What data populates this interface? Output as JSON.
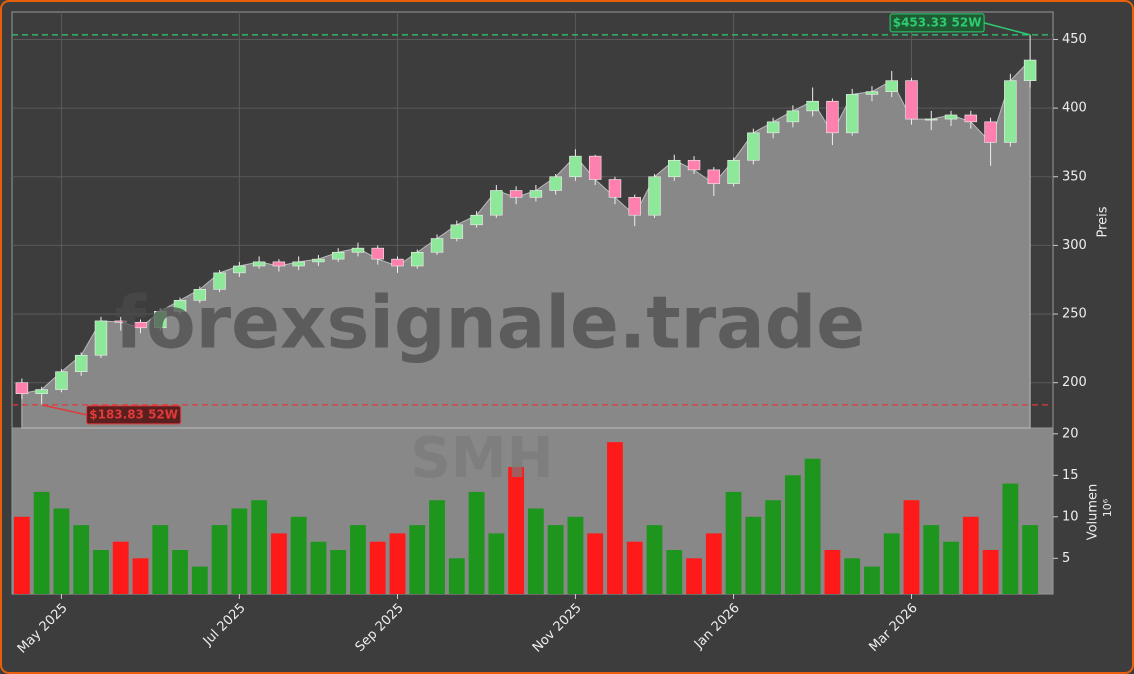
{
  "chart_data": {
    "type": "candlestick",
    "watermark": "forexsignale.trade",
    "ticker": "SMH",
    "y_label": "Preis",
    "y2_label": "Volumen",
    "y2_unit": "10⁶",
    "categories": [
      null,
      null,
      "May 2025",
      null,
      null,
      null,
      null,
      null,
      null,
      null,
      null,
      "Jul 2025",
      null,
      null,
      null,
      null,
      null,
      null,
      null,
      "Sep 2025",
      null,
      null,
      null,
      null,
      null,
      null,
      null,
      null,
      "Nov 2025",
      null,
      null,
      null,
      null,
      null,
      null,
      null,
      "Jan 2026",
      null,
      null,
      null,
      null,
      null,
      null,
      null,
      null,
      "Mar 2026",
      null,
      null,
      null,
      null,
      null,
      null
    ],
    "open": [
      200,
      192,
      195,
      208,
      220,
      245,
      244,
      240,
      252,
      260,
      268,
      280,
      285,
      288,
      285,
      288,
      290,
      295,
      298,
      290,
      285,
      295,
      305,
      315,
      322,
      340,
      335,
      340,
      350,
      365,
      348,
      335,
      322,
      350,
      362,
      355,
      345,
      362,
      382,
      390,
      398,
      405,
      382,
      410,
      412,
      420,
      392,
      392,
      395,
      390,
      375,
      420
    ],
    "high": [
      203,
      197,
      210,
      222,
      248,
      248,
      246,
      254,
      262,
      270,
      282,
      288,
      292,
      290,
      292,
      293,
      298,
      302,
      300,
      292,
      297,
      308,
      318,
      325,
      344,
      343,
      344,
      352,
      370,
      366,
      350,
      337,
      352,
      366,
      365,
      357,
      364,
      385,
      393,
      402,
      415,
      407,
      414,
      416,
      427,
      422,
      398,
      398,
      398,
      393,
      425,
      453.33
    ],
    "low": [
      188,
      183.83,
      193,
      205,
      218,
      238,
      236,
      238,
      250,
      258,
      266,
      277,
      283,
      281,
      282,
      285,
      288,
      292,
      286,
      280,
      283,
      293,
      303,
      313,
      320,
      330,
      332,
      337,
      347,
      344,
      330,
      314,
      320,
      347,
      352,
      336,
      343,
      359,
      378,
      386,
      394,
      373,
      380,
      405,
      408,
      388,
      384,
      387,
      385,
      358,
      372,
      415
    ],
    "close": [
      192,
      195,
      208,
      220,
      245,
      244,
      240,
      252,
      260,
      268,
      280,
      285,
      288,
      285,
      288,
      290,
      295,
      298,
      290,
      285,
      295,
      305,
      315,
      322,
      340,
      335,
      340,
      350,
      365,
      348,
      335,
      322,
      350,
      362,
      355,
      345,
      362,
      382,
      390,
      398,
      405,
      382,
      410,
      412,
      420,
      392,
      392,
      395,
      390,
      375,
      420,
      435
    ],
    "volume": [
      10,
      13,
      11,
      9,
      6,
      7,
      5,
      9,
      6,
      4,
      9,
      11,
      12,
      8,
      10,
      7,
      6,
      9,
      7,
      8,
      9,
      12,
      5,
      13,
      8,
      16,
      11,
      9,
      10,
      8,
      19,
      7,
      9,
      6,
      5,
      8,
      13,
      10,
      12,
      15,
      17,
      6,
      5,
      4,
      8,
      12,
      9,
      7,
      10,
      6,
      14,
      9
    ],
    "up_color": "#8ee89a",
    "down_color": "#ff7fae",
    "volume_up_color": "#1e961e",
    "volume_down_color": "#ff1a1a",
    "ylim": [
      167,
      470
    ],
    "yticks": [
      200,
      250,
      300,
      350,
      400,
      450
    ],
    "y2lim": [
      0.7,
      20.7
    ],
    "y2ticks": [
      5,
      10,
      15,
      20
    ],
    "grid": true,
    "annotations": [
      {
        "value": 453.33,
        "label": "$453.33 52W",
        "color": "#2ecc71"
      },
      {
        "value": 183.83,
        "label": "$183.83 52W",
        "color": "#e03a3a"
      }
    ]
  }
}
